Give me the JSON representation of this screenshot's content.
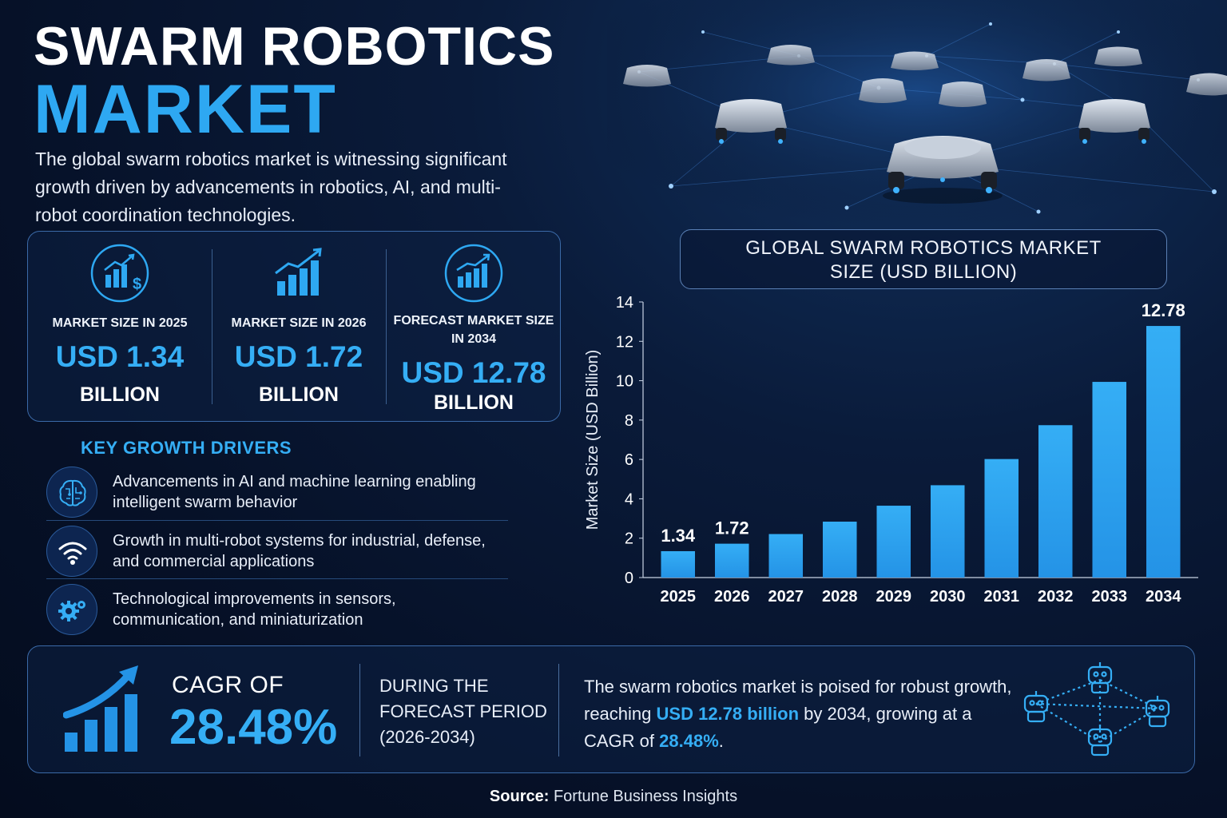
{
  "header": {
    "title_line1": "SWARM ROBOTICS",
    "title_line2": "MARKET",
    "intro": "The global swarm robotics market is witnessing significant growth driven by advancements in robotics, AI, and multi-robot coordination technologies."
  },
  "stats": [
    {
      "icon": "chart-dollar-icon",
      "label": "MARKET SIZE IN 2025",
      "value": "USD 1.34",
      "unit": "BILLION"
    },
    {
      "icon": "rising-bars-icon",
      "label": "MARKET SIZE IN 2026",
      "value": "USD 1.72",
      "unit": "BILLION"
    },
    {
      "icon": "forecast-chart-icon",
      "label": "FORECAST MARKET SIZE IN 2034",
      "value": "USD 12.78",
      "unit": "BILLION"
    }
  ],
  "drivers": {
    "title": "KEY GROWTH DRIVERS",
    "items": [
      {
        "icon": "ai-brain-icon",
        "text": "Advancements in AI and machine learning enabling intelligent swarm behavior"
      },
      {
        "icon": "wifi-signal-icon",
        "text": "Growth in multi-robot systems for industrial, defense, and commercial applications"
      },
      {
        "icon": "gears-icon",
        "text": "Technological improvements in sensors, communication, and miniaturization"
      }
    ]
  },
  "chart_data": {
    "type": "bar",
    "title": "GLOBAL SWARM ROBOTICS MARKET SIZE (USD BILLION)",
    "title_lines": [
      "GLOBAL SWARM ROBOTICS MARKET",
      "SIZE (USD BILLION)"
    ],
    "xlabel": "",
    "ylabel": "Market Size (USD Billion)",
    "categories": [
      "2025",
      "2026",
      "2027",
      "2028",
      "2029",
      "2030",
      "2031",
      "2032",
      "2033",
      "2034"
    ],
    "values": [
      1.34,
      1.72,
      2.21,
      2.84,
      3.65,
      4.69,
      6.02,
      7.74,
      9.94,
      12.78
    ],
    "data_labels": {
      "0": "1.34",
      "1": "1.72",
      "9": "12.78"
    },
    "ylim": [
      0,
      14
    ],
    "yticks": [
      "0",
      "2",
      "4",
      "6",
      "8",
      "10",
      "12",
      "14"
    ],
    "grid": false,
    "bar_color": "#2493e6"
  },
  "cagr": {
    "label": "CAGR OF",
    "value": "28.48%",
    "period_line1": "DURING THE",
    "period_line2": "FORECAST PERIOD",
    "period_line3": "(2026-2034)",
    "summary_part1": "The swarm robotics market is poised for robust growth, reaching ",
    "summary_hl1": "USD 12.78 billion",
    "summary_part2": " by 2034, growing at a CAGR of ",
    "summary_hl2": "28.48%",
    "summary_part3": "."
  },
  "source": {
    "label": "Source:",
    "text": " Fortune Business Insights"
  },
  "colors": {
    "accent": "#35aef5",
    "background": "#061128",
    "bar": "#2493e6"
  }
}
